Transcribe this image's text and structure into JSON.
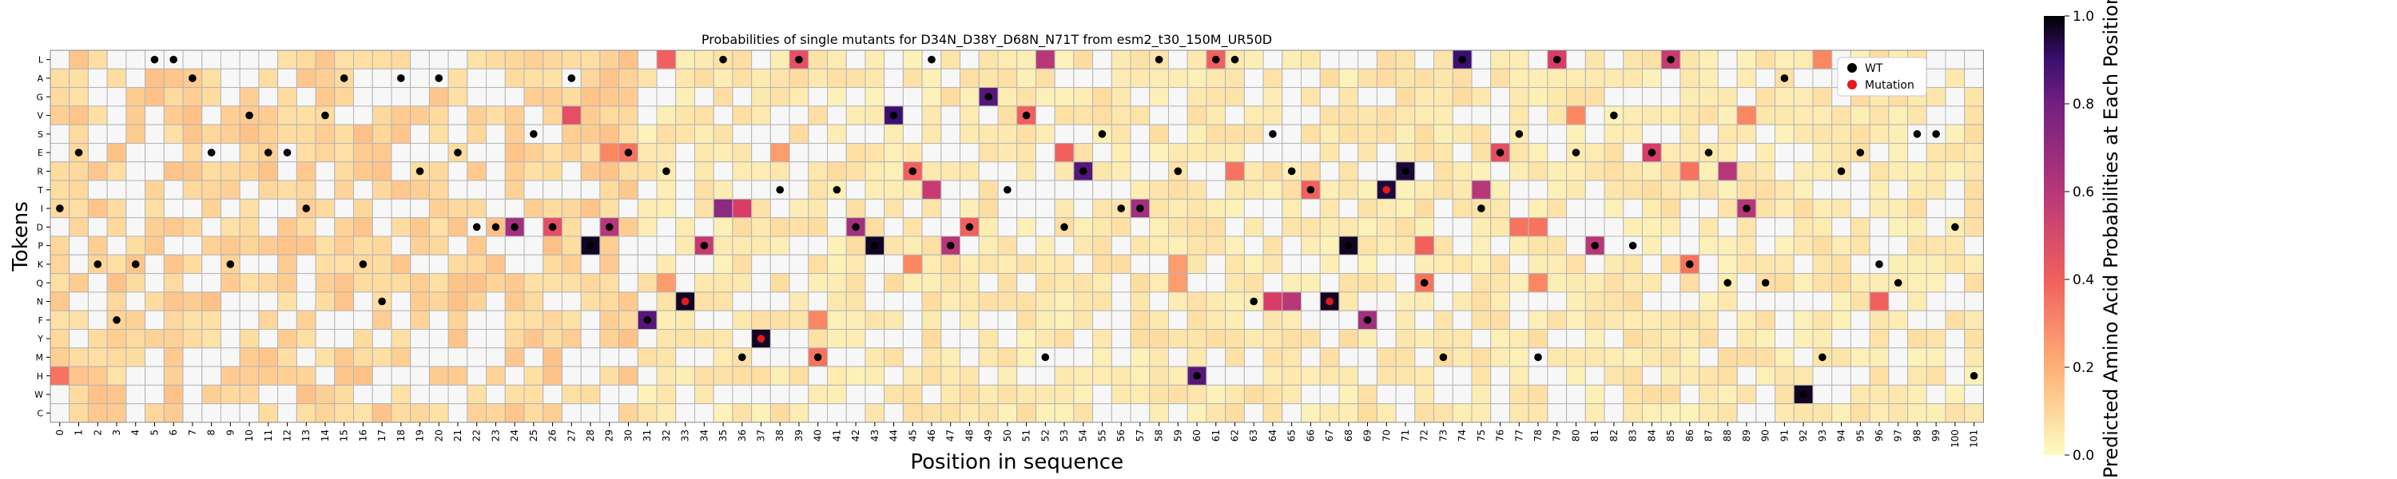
{
  "chart_data": {
    "type": "heatmap",
    "title": "Probabilities of single mutants for D34N_D38Y_D68N_N71T from esm2_t30_150M_UR50D",
    "xlabel": "Position in sequence",
    "ylabel": "Tokens",
    "y_tokens": [
      "L",
      "A",
      "G",
      "V",
      "S",
      "E",
      "R",
      "T",
      "I",
      "D",
      "P",
      "K",
      "Q",
      "N",
      "F",
      "Y",
      "M",
      "H",
      "W",
      "C"
    ],
    "x_positions": [
      0,
      1,
      2,
      3,
      4,
      5,
      6,
      7,
      8,
      9,
      10,
      11,
      12,
      13,
      14,
      15,
      16,
      17,
      18,
      19,
      20,
      21,
      22,
      23,
      24,
      25,
      26,
      27,
      28,
      29,
      30,
      31,
      32,
      33,
      34,
      35,
      36,
      37,
      38,
      39,
      40,
      41,
      42,
      43,
      44,
      45,
      46,
      47,
      48,
      49,
      50,
      51,
      52,
      53,
      54,
      55,
      56,
      57,
      58,
      59,
      60,
      61,
      62,
      63,
      64,
      65,
      66,
      67,
      68,
      69,
      70,
      71,
      72,
      73,
      74,
      75,
      76,
      77,
      78,
      79,
      80,
      81,
      82,
      83,
      84,
      85,
      86,
      87,
      88,
      89,
      90,
      91,
      92,
      93,
      94,
      95,
      96,
      97,
      98,
      99,
      100,
      101
    ],
    "wild_type_tokens": [
      "I",
      "E",
      "K",
      "F",
      "K",
      "L",
      "L",
      "A",
      "E",
      "K",
      "V",
      "E",
      "E",
      "I",
      "V",
      "A",
      "K",
      "N",
      "A",
      "R",
      "A",
      "E",
      "D",
      "D",
      "D",
      "S",
      "D",
      "A",
      "P",
      "D",
      "E",
      "F",
      "R",
      "N",
      "P",
      "L",
      "M",
      "Y",
      "T",
      "L",
      "M",
      "T",
      "D",
      "P",
      "V",
      "R",
      "L",
      "P",
      "D",
      "G",
      "T",
      "V",
      "M",
      "D",
      "R",
      "S",
      "I",
      "I",
      "L",
      "R",
      "H",
      "L",
      "L",
      "N",
      "S",
      "R",
      "T",
      "N",
      "P",
      "F",
      "T",
      "R",
      "Q",
      "M",
      "L",
      "I",
      "E",
      "S",
      "M",
      "L",
      "E",
      "P",
      "V",
      "P",
      "E",
      "L",
      "K",
      "E",
      "Q",
      "I",
      "Q",
      "A",
      "W",
      "M",
      "R",
      "E",
      "K",
      "Q",
      "S",
      "S",
      "D",
      "H"
    ],
    "mutations": [
      {
        "position": 33,
        "token": "N"
      },
      {
        "position": 37,
        "token": "Y"
      },
      {
        "position": 67,
        "token": "N"
      },
      {
        "position": 70,
        "token": "T"
      }
    ],
    "highlights": [
      {
        "position": 27,
        "token": "V",
        "value": 0.45
      },
      {
        "position": 32,
        "token": "L",
        "value": 0.4
      },
      {
        "position": 52,
        "token": "L",
        "value": 0.6
      },
      {
        "position": 44,
        "token": "V",
        "value": 0.9
      },
      {
        "position": 49,
        "token": "G",
        "value": 0.85
      },
      {
        "position": 74,
        "token": "L",
        "value": 0.9
      },
      {
        "position": 39,
        "token": "L",
        "value": 0.45
      },
      {
        "position": 85,
        "token": "L",
        "value": 0.55
      },
      {
        "position": 79,
        "token": "L",
        "value": 0.5
      },
      {
        "position": 61,
        "token": "L",
        "value": 0.4
      },
      {
        "position": 51,
        "token": "V",
        "value": 0.4
      },
      {
        "position": 76,
        "token": "E",
        "value": 0.45
      },
      {
        "position": 84,
        "token": "E",
        "value": 0.5
      },
      {
        "position": 53,
        "token": "E",
        "value": 0.4
      },
      {
        "position": 30,
        "token": "E",
        "value": 0.35
      },
      {
        "position": 29,
        "token": "E",
        "value": 0.3
      },
      {
        "position": 54,
        "token": "R",
        "value": 0.85
      },
      {
        "position": 71,
        "token": "R",
        "value": 0.95
      },
      {
        "position": 88,
        "token": "R",
        "value": 0.6
      },
      {
        "position": 45,
        "token": "R",
        "value": 0.4
      },
      {
        "position": 62,
        "token": "R",
        "value": 0.35
      },
      {
        "position": 86,
        "token": "R",
        "value": 0.35
      },
      {
        "position": 46,
        "token": "T",
        "value": 0.55
      },
      {
        "position": 66,
        "token": "T",
        "value": 0.4
      },
      {
        "position": 70,
        "token": "T",
        "value": 0.95
      },
      {
        "position": 75,
        "token": "T",
        "value": 0.6
      },
      {
        "position": 35,
        "token": "I",
        "value": 0.7
      },
      {
        "position": 36,
        "token": "I",
        "value": 0.5
      },
      {
        "position": 57,
        "token": "I",
        "value": 0.65
      },
      {
        "position": 89,
        "token": "I",
        "value": 0.6
      },
      {
        "position": 24,
        "token": "D",
        "value": 0.65
      },
      {
        "position": 26,
        "token": "D",
        "value": 0.45
      },
      {
        "position": 29,
        "token": "D",
        "value": 0.6
      },
      {
        "position": 42,
        "token": "D",
        "value": 0.65
      },
      {
        "position": 48,
        "token": "D",
        "value": 0.4
      },
      {
        "position": 77,
        "token": "D",
        "value": 0.35
      },
      {
        "position": 78,
        "token": "D",
        "value": 0.35
      },
      {
        "position": 28,
        "token": "P",
        "value": 0.97
      },
      {
        "position": 34,
        "token": "P",
        "value": 0.55
      },
      {
        "position": 43,
        "token": "P",
        "value": 0.97
      },
      {
        "position": 47,
        "token": "P",
        "value": 0.6
      },
      {
        "position": 68,
        "token": "P",
        "value": 0.97
      },
      {
        "position": 72,
        "token": "P",
        "value": 0.4
      },
      {
        "position": 81,
        "token": "P",
        "value": 0.6
      },
      {
        "position": 45,
        "token": "K",
        "value": 0.3
      },
      {
        "position": 86,
        "token": "K",
        "value": 0.35
      },
      {
        "position": 72,
        "token": "Q",
        "value": 0.35
      },
      {
        "position": 78,
        "token": "Q",
        "value": 0.3
      },
      {
        "position": 33,
        "token": "N",
        "value": 0.97
      },
      {
        "position": 64,
        "token": "N",
        "value": 0.5
      },
      {
        "position": 65,
        "token": "N",
        "value": 0.6
      },
      {
        "position": 67,
        "token": "N",
        "value": 0.97
      },
      {
        "position": 96,
        "token": "N",
        "value": 0.4
      },
      {
        "position": 31,
        "token": "F",
        "value": 0.85
      },
      {
        "position": 69,
        "token": "F",
        "value": 0.65
      },
      {
        "position": 37,
        "token": "Y",
        "value": 0.97
      },
      {
        "position": 40,
        "token": "M",
        "value": 0.35
      },
      {
        "position": 0,
        "token": "H",
        "value": 0.35
      },
      {
        "position": 60,
        "token": "H",
        "value": 0.85
      },
      {
        "position": 92,
        "token": "W",
        "value": 0.97
      },
      {
        "position": 93,
        "token": "L",
        "value": 0.3
      },
      {
        "position": 80,
        "token": "V",
        "value": 0.3
      },
      {
        "position": 89,
        "token": "V",
        "value": 0.3
      },
      {
        "position": 59,
        "token": "Q",
        "value": 0.25
      },
      {
        "position": 59,
        "token": "K",
        "value": 0.25
      },
      {
        "position": 38,
        "token": "E",
        "value": 0.25
      },
      {
        "position": 40,
        "token": "F",
        "value": 0.3
      },
      {
        "position": 32,
        "token": "Q",
        "value": 0.25
      }
    ],
    "colorbar": {
      "label": "Predicted Amino Acid Probabilities at Each Position",
      "ticks": [
        "0.0",
        "0.2",
        "0.4",
        "0.6",
        "0.8",
        "1.0"
      ],
      "colormap": "magma_r",
      "range": [
        0,
        1
      ]
    },
    "legend": {
      "placement": "top-right",
      "entries": [
        {
          "label": "WT",
          "color": "#000000"
        },
        {
          "label": "Mutation",
          "color": "#e41a1c"
        }
      ]
    }
  }
}
